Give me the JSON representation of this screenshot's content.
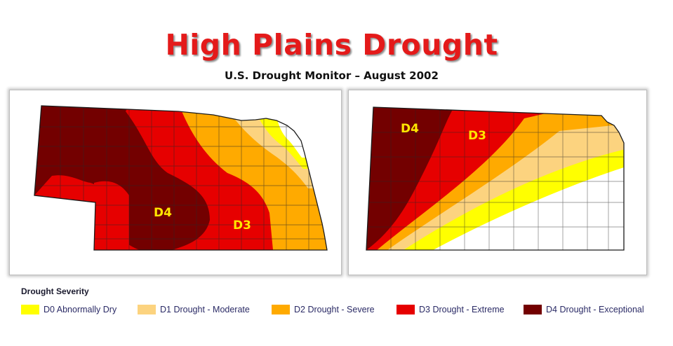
{
  "title": "High Plains Drought",
  "subtitle": "U.S. Drought Monitor – August 2002",
  "colors": {
    "D0": "#ffff00",
    "D1": "#fcd37f",
    "D2": "#ffaa00",
    "D3": "#e60000",
    "D4": "#730000",
    "none": "#ffffff",
    "title": "#e41a1a"
  },
  "maps": {
    "nebraska": {
      "labels": {
        "d4": "D4",
        "d3": "D3"
      }
    },
    "kansas": {
      "labels": {
        "d4": "D4",
        "d3": "D3"
      }
    }
  },
  "legend": {
    "title": "Drought Severity",
    "items": [
      {
        "category": "D0",
        "label": "D0 Abnormally Dry",
        "color": "#ffff00"
      },
      {
        "category": "D1",
        "label": "D1 Drought - Moderate",
        "color": "#fcd37f"
      },
      {
        "category": "D2",
        "label": "D2 Drought - Severe",
        "color": "#ffaa00"
      },
      {
        "category": "D3",
        "label": "D3 Drought - Extreme",
        "color": "#e60000"
      },
      {
        "category": "D4",
        "label": "D4 Drought - Exceptional",
        "color": "#730000"
      }
    ]
  }
}
